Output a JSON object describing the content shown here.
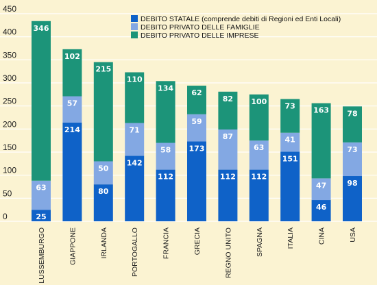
{
  "chart_data": {
    "type": "bar",
    "stacked": true,
    "categories": [
      "LUSSEMBURGO",
      "GIAPPONE",
      "IRLANDA",
      "PORTOGALLO",
      "FRANCIA",
      "GRECIA",
      "REGNO UNITO",
      "SPAGNA",
      "ITALIA",
      "CINA",
      "USA"
    ],
    "series": [
      {
        "name": "DEBITO STATALE (comprende debiti di Regioni ed Enti Locali)",
        "color": "#0f62c8",
        "values": [
          25,
          214,
          80,
          142,
          112,
          173,
          112,
          112,
          151,
          46,
          98
        ]
      },
      {
        "name": "DEBITO PRIVATO DELLE FAMIGLIE",
        "color": "#83a8e3",
        "values": [
          63,
          57,
          50,
          71,
          58,
          59,
          87,
          63,
          41,
          47,
          73
        ]
      },
      {
        "name": "DEBITO PRIVATO DELLE IMPRESE",
        "color": "#1c9479",
        "values": [
          346,
          102,
          215,
          110,
          134,
          62,
          82,
          100,
          73,
          163,
          78
        ]
      }
    ],
    "ylim": [
      0,
      450
    ],
    "yticks": [
      0,
      50,
      100,
      150,
      200,
      250,
      300,
      350,
      400,
      450
    ],
    "grid": true,
    "legend_position": "top-right",
    "background": "#fbf3d2"
  }
}
